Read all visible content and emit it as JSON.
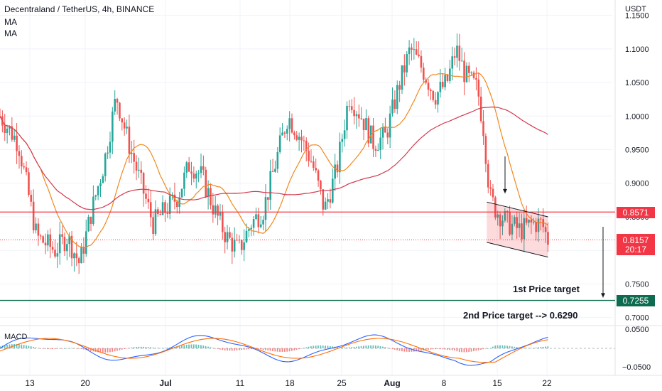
{
  "header": {
    "symbol": "Decentraland / TetherUS, 4h, BINANCE",
    "ma1": "MA",
    "ma2": "MA",
    "currency": "USDT"
  },
  "chart_data": {
    "type": "candlestick",
    "price_axis": {
      "ticks": [
        1.15,
        1.1,
        1.05,
        1.0,
        0.95,
        0.9,
        0.85,
        0.8,
        0.75,
        0.7
      ],
      "tick_labels": [
        "1.1500",
        "1.1000",
        "1.0500",
        "1.0000",
        "0.9500",
        "0.9000",
        "0.8500",
        "0.8000",
        "0.7500",
        "0.7000"
      ],
      "range": [
        0.688,
        1.158
      ]
    },
    "time_axis": {
      "labels": [
        "13",
        "20",
        "Jul",
        "11",
        "18",
        "25",
        "Aug",
        "8",
        "15",
        "22"
      ]
    },
    "price_marks": {
      "resistance": {
        "value": 0.8571,
        "label": "0.8571",
        "color": "#f23645"
      },
      "current": {
        "value": 0.8157,
        "label": "0.8157",
        "countdown": "20:17",
        "color": "#f23645"
      },
      "support": {
        "value": 0.7255,
        "label": "0.7255",
        "color": "#0e6b4f"
      }
    },
    "annotations": {
      "target1": "1st Price target",
      "target2": "2nd Price target --> 0.6290"
    },
    "ma_fast_color": "#f0891d",
    "ma_slow_color": "#d33a4e",
    "up_color": "#26a69a",
    "down_color": "#ef5350",
    "price_path": [
      [
        0.0,
        1.0
      ],
      [
        0.03,
        0.96
      ],
      [
        0.06,
        0.82
      ],
      [
        0.09,
        0.8
      ],
      [
        0.11,
        0.82
      ],
      [
        0.13,
        0.78
      ],
      [
        0.15,
        0.86
      ],
      [
        0.17,
        0.93
      ],
      [
        0.19,
        1.03
      ],
      [
        0.21,
        0.96
      ],
      [
        0.23,
        0.9
      ],
      [
        0.25,
        0.84
      ],
      [
        0.27,
        0.86
      ],
      [
        0.29,
        0.88
      ],
      [
        0.31,
        0.93
      ],
      [
        0.33,
        0.91
      ],
      [
        0.35,
        0.86
      ],
      [
        0.37,
        0.82
      ],
      [
        0.39,
        0.8
      ],
      [
        0.41,
        0.84
      ],
      [
        0.43,
        0.86
      ],
      [
        0.45,
        0.93
      ],
      [
        0.47,
        1.0
      ],
      [
        0.49,
        0.97
      ],
      [
        0.51,
        0.93
      ],
      [
        0.53,
        0.86
      ],
      [
        0.55,
        0.92
      ],
      [
        0.57,
        1.03
      ],
      [
        0.59,
        1.0
      ],
      [
        0.61,
        0.96
      ],
      [
        0.63,
        0.97
      ],
      [
        0.65,
        1.04
      ],
      [
        0.67,
        1.1
      ],
      [
        0.69,
        1.07
      ],
      [
        0.71,
        1.03
      ],
      [
        0.73,
        1.05
      ],
      [
        0.745,
        1.1
      ],
      [
        0.76,
        1.06
      ],
      [
        0.78,
        1.04
      ],
      [
        0.79,
        0.98
      ],
      [
        0.8,
        0.88
      ],
      [
        0.81,
        0.86
      ],
      [
        0.83,
        0.84
      ],
      [
        0.85,
        0.83
      ],
      [
        0.87,
        0.84
      ],
      [
        0.885,
        0.84
      ],
      [
        0.895,
        0.8157
      ]
    ],
    "macd": {
      "label": "MACD",
      "ticks": [
        0.05,
        -0.05
      ],
      "tick_labels": [
        "0.0500",
        "−0.0500"
      ]
    }
  }
}
